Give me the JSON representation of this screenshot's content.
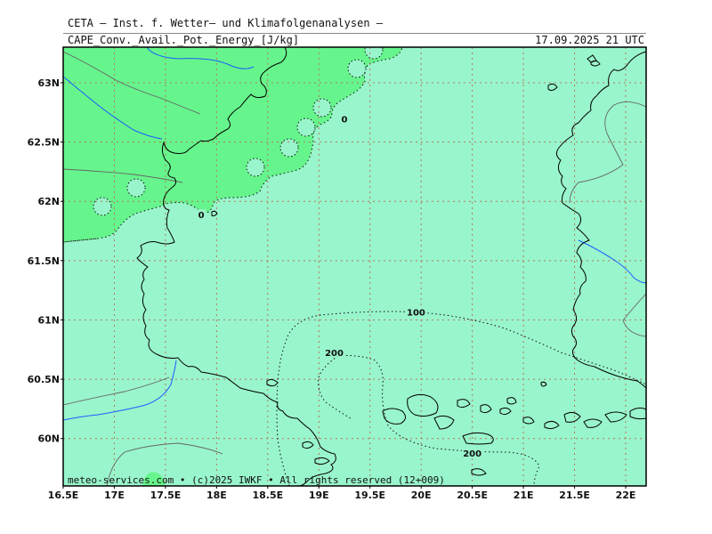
{
  "header": {
    "title": "CETA — Inst. f. Wetter— und Klimafolgenanalysen —",
    "variable": "CAPE_Conv._Avail._Pot._Energy_[J/kg]",
    "valid_time": "17.09.2025 21 UTC"
  },
  "footer": {
    "credit": "meteo-services.com • (c)2025 IWKF • All rights reserved (12+009)"
  },
  "colors": {
    "sea": "#99f5cc",
    "land_zero": "#66f58c",
    "gridline": "#b07a5c",
    "coast": "#000000",
    "river": "#1a5cff",
    "border": "#666666"
  },
  "chart_data": {
    "type": "map",
    "xlim": [
      16.5,
      22.2
    ],
    "ylim": [
      59.6,
      63.3
    ],
    "x_ticks": [
      {
        "value": 16.5,
        "label": "16.5E"
      },
      {
        "value": 17.0,
        "label": "17E"
      },
      {
        "value": 17.5,
        "label": "17.5E"
      },
      {
        "value": 18.0,
        "label": "18E"
      },
      {
        "value": 18.5,
        "label": "18.5E"
      },
      {
        "value": 19.0,
        "label": "19E"
      },
      {
        "value": 19.5,
        "label": "19.5E"
      },
      {
        "value": 20.0,
        "label": "20E"
      },
      {
        "value": 20.5,
        "label": "20.5E"
      },
      {
        "value": 21.0,
        "label": "21E"
      },
      {
        "value": 21.5,
        "label": "21.5E"
      },
      {
        "value": 22.0,
        "label": "22E"
      }
    ],
    "y_ticks": [
      {
        "value": 60.0,
        "label": "60N"
      },
      {
        "value": 60.5,
        "label": "60.5N"
      },
      {
        "value": 61.0,
        "label": "61N"
      },
      {
        "value": 61.5,
        "label": "61.5N"
      },
      {
        "value": 62.0,
        "label": "62N"
      },
      {
        "value": 62.5,
        "label": "62.5N"
      },
      {
        "value": 63.0,
        "label": "63N"
      }
    ],
    "contour_labels": [
      {
        "text": "0",
        "lon": 17.85,
        "lat": 61.88
      },
      {
        "text": "0",
        "lon": 19.25,
        "lat": 62.69
      },
      {
        "text": "100",
        "lon": 19.95,
        "lat": 61.06
      },
      {
        "text": "200",
        "lon": 19.15,
        "lat": 60.72
      },
      {
        "text": "200",
        "lon": 20.5,
        "lat": 59.87
      }
    ]
  }
}
